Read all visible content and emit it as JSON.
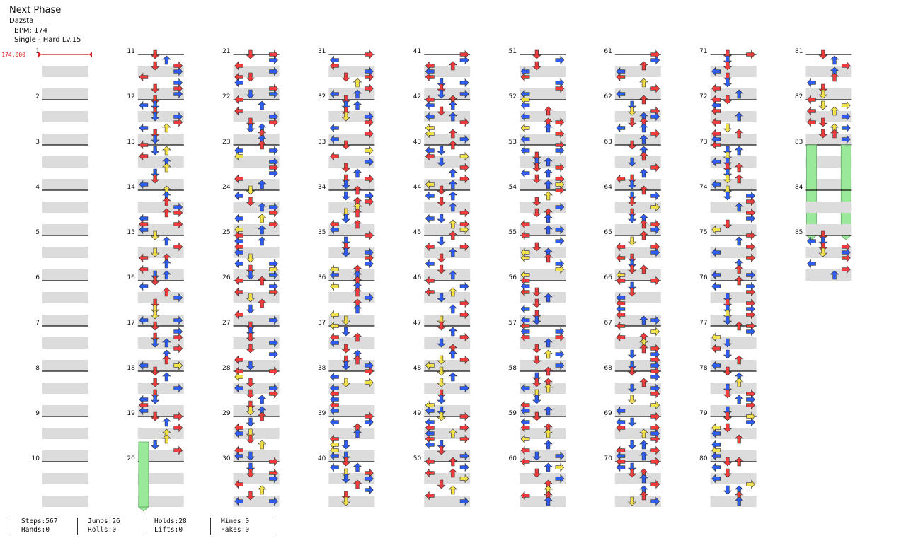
{
  "song": {
    "title": "Next Phase",
    "artist": "Dazsta",
    "bpm_label": "BPM: 174",
    "difficulty_label": "Single - Hard  Lv.15"
  },
  "bpm_marker": {
    "value": "174.000",
    "color": "#e02020"
  },
  "colors": {
    "arrow_4th": "#ee3b3b",
    "arrow_8th": "#2e5bf0",
    "arrow_16th": "#f2e04a",
    "hold": "#9ae89a",
    "beat_shade": "#dcdcdc",
    "measure_line": "#111111"
  },
  "columns": [
    {
      "measures": [
        "1",
        "2",
        "3",
        "4",
        "5",
        "6",
        "7",
        "8",
        "9",
        "10"
      ]
    },
    {
      "measures": [
        "11",
        "12",
        "13",
        "14",
        "15",
        "16",
        "17",
        "18",
        "19",
        "20"
      ]
    },
    {
      "measures": [
        "21",
        "22",
        "23",
        "24",
        "25",
        "26",
        "27",
        "28",
        "29",
        "30"
      ]
    },
    {
      "measures": [
        "31",
        "32",
        "33",
        "34",
        "35",
        "36",
        "37",
        "38",
        "39",
        "40"
      ]
    },
    {
      "measures": [
        "41",
        "42",
        "43",
        "44",
        "45",
        "46",
        "47",
        "48",
        "49",
        "50"
      ]
    },
    {
      "measures": [
        "51",
        "52",
        "53",
        "54",
        "55",
        "56",
        "57",
        "58",
        "59",
        "60"
      ]
    },
    {
      "measures": [
        "61",
        "62",
        "63",
        "64",
        "65",
        "66",
        "67",
        "68",
        "69",
        "70"
      ]
    },
    {
      "measures": [
        "71",
        "72",
        "73",
        "74",
        "75",
        "76",
        "77",
        "78",
        "79",
        "80"
      ]
    },
    {
      "measures": [
        "81",
        "82",
        "83",
        "84",
        "85"
      ]
    }
  ],
  "stats": [
    {
      "top": "Steps:567",
      "bottom": "Hands:0"
    },
    {
      "top": "Jumps:26",
      "bottom": "Rolls:0"
    },
    {
      "top": "Holds:28",
      "bottom": "Lifts:0"
    },
    {
      "top": "Mines:0",
      "bottom": "Fakes:0"
    }
  ]
}
